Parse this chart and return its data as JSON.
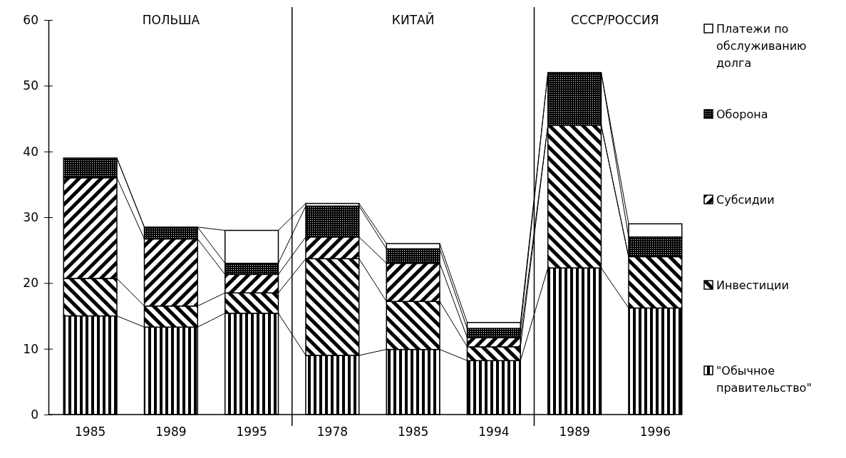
{
  "chart_data": {
    "type": "bar",
    "stacked": true,
    "categories": [
      "1985",
      "1989",
      "1995",
      "1978",
      "1985",
      "1994",
      "1989",
      "1996"
    ],
    "series": [
      {
        "name": "\"Обычное правительство\"",
        "color": "#000000",
        "values": [
          15,
          13.3,
          15.4,
          9,
          9.9,
          8.2,
          22.3,
          16.2
        ]
      },
      {
        "name": "Инвестиции",
        "color": "#000000",
        "values": [
          5.7,
          3.2,
          3.1,
          14.7,
          7.3,
          2.1,
          21.7,
          7.8
        ]
      },
      {
        "name": "Субсидии",
        "color": "#000000",
        "values": [
          15.3,
          10.2,
          2.8,
          3.3,
          5.8,
          1.4,
          0,
          0
        ]
      },
      {
        "name": "Оборона",
        "color": "#000000",
        "values": [
          3,
          1.8,
          1.7,
          4.7,
          2.2,
          1.4,
          8,
          3
        ]
      },
      {
        "name": "Платежи по обслуживанию долга",
        "color": "#ffffff",
        "values": [
          0,
          0,
          5,
          0.4,
          0.8,
          0.9,
          0,
          2
        ]
      }
    ],
    "ylim": [
      0,
      60
    ],
    "yticks": [
      0,
      10,
      20,
      30,
      40,
      50,
      60
    ],
    "grid": false,
    "legend": "right",
    "annotations": [
      "ПОЛЬША",
      "КИТАЙ",
      "СССР/РОССИЯ"
    ]
  }
}
